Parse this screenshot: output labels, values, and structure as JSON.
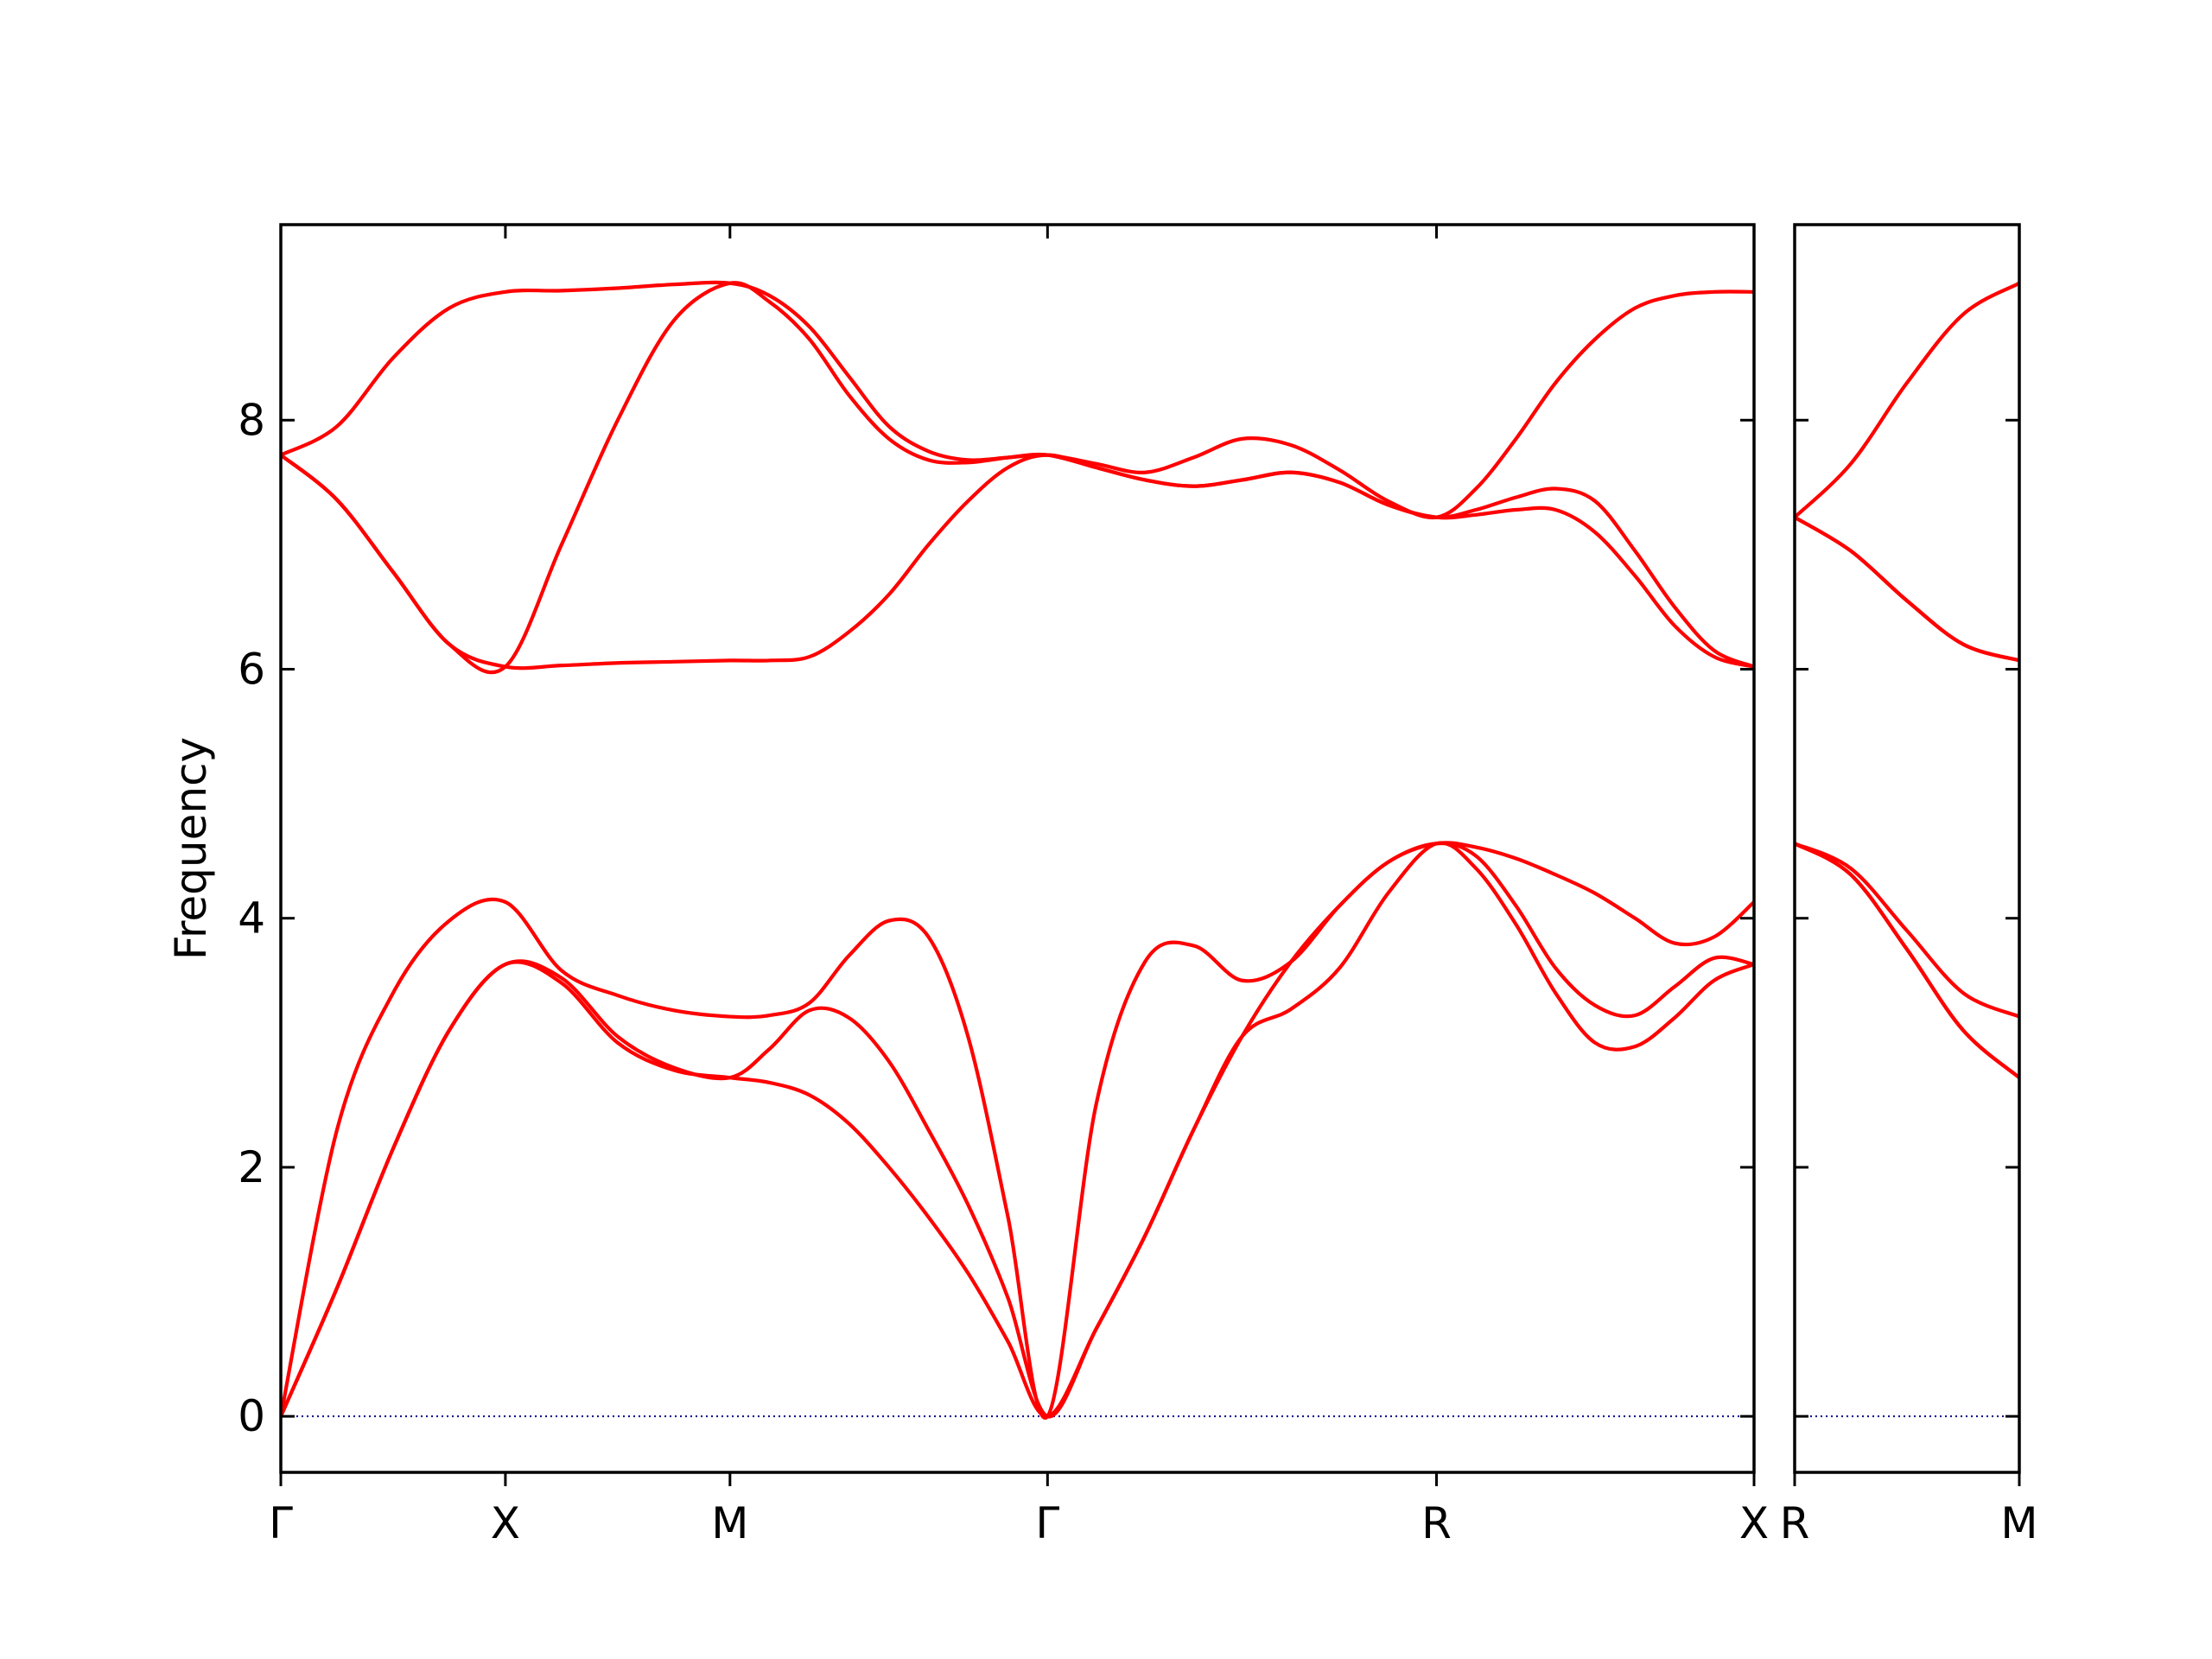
{
  "chart_data": [
    {
      "type": "line",
      "y_label": "Frequency",
      "x": [
        0,
        0.125,
        0.25,
        0.375,
        0.5,
        0.625,
        0.75,
        0.875,
        1.0,
        1.088,
        1.177,
        1.265,
        1.354,
        1.442,
        1.53,
        1.619,
        1.707,
        1.815,
        1.924,
        2.032,
        2.14,
        2.249,
        2.357,
        2.465,
        2.573,
        2.661,
        2.75,
        2.838,
        2.926,
        3.015,
        3.103,
        3.191,
        3.28
      ],
      "xlim": [
        0,
        3.28
      ],
      "xticks": [
        {
          "value": 0,
          "label": "Γ"
        },
        {
          "value": 0.5,
          "label": "X"
        },
        {
          "value": 1.0,
          "label": "M"
        },
        {
          "value": 1.707,
          "label": "Γ"
        },
        {
          "value": 2.573,
          "label": "R"
        },
        {
          "value": 3.28,
          "label": "X"
        }
      ],
      "ylim": [
        -0.45,
        9.57
      ],
      "yticks": [
        0,
        2,
        4,
        6,
        8
      ],
      "ytick_labels": true,
      "hline": 0,
      "hline_color": "#00008b",
      "series": [
        {
          "color": "#ff0000",
          "values": [
            0,
            1.03,
            2.15,
            3.1,
            3.63,
            3.48,
            3.0,
            2.78,
            2.72,
            2.68,
            2.58,
            2.35,
            2.0,
            1.6,
            1.15,
            0.6,
            0,
            0.7,
            1.45,
            2.3,
            3.05,
            3.27,
            3.6,
            4.2,
            4.6,
            4.4,
            3.95,
            3.4,
            3.0,
            2.97,
            3.2,
            3.5,
            3.63
          ]
        },
        {
          "color": "#ff0000",
          "values": [
            0,
            1.03,
            2.15,
            3.1,
            3.63,
            3.52,
            3.05,
            2.8,
            2.72,
            2.95,
            3.26,
            3.2,
            2.85,
            2.3,
            1.7,
            0.95,
            0,
            0.7,
            1.45,
            2.3,
            3.05,
            3.65,
            4.1,
            4.45,
            4.6,
            4.5,
            4.1,
            3.6,
            3.3,
            3.22,
            3.45,
            3.68,
            3.63
          ]
        },
        {
          "color": "#ff0000",
          "values": [
            0,
            2.3,
            3.4,
            3.98,
            4.13,
            3.58,
            3.38,
            3.26,
            3.21,
            3.22,
            3.32,
            3.7,
            3.98,
            3.85,
            3.05,
            1.6,
            0,
            2.5,
            3.65,
            3.78,
            3.5,
            3.65,
            4.1,
            4.45,
            4.6,
            4.57,
            4.48,
            4.35,
            4.2,
            4.0,
            3.8,
            3.85,
            4.13
          ]
        },
        {
          "color": "#ff0000",
          "values": [
            7.72,
            7.36,
            6.78,
            6.2,
            6.02,
            6.03,
            6.05,
            6.06,
            6.07,
            6.07,
            6.1,
            6.3,
            6.6,
            7.0,
            7.35,
            7.62,
            7.72,
            7.62,
            7.52,
            7.47,
            7.52,
            7.58,
            7.5,
            7.32,
            7.22,
            7.24,
            7.28,
            7.28,
            7.1,
            6.75,
            6.35,
            6.1,
            6.02
          ]
        },
        {
          "color": "#ff0000",
          "values": [
            7.72,
            7.36,
            6.78,
            6.2,
            6.02,
            7.0,
            8.0,
            8.8,
            9.1,
            8.95,
            8.65,
            8.2,
            7.85,
            7.68,
            7.66,
            7.7,
            7.72,
            7.62,
            7.52,
            7.47,
            7.52,
            7.58,
            7.5,
            7.32,
            7.22,
            7.28,
            7.38,
            7.45,
            7.35,
            6.95,
            6.5,
            6.15,
            6.02
          ]
        },
        {
          "color": "#ff0000",
          "values": [
            7.72,
            7.95,
            8.5,
            8.9,
            9.03,
            9.04,
            9.06,
            9.09,
            9.1,
            9.0,
            8.75,
            8.35,
            7.95,
            7.75,
            7.68,
            7.7,
            7.72,
            7.65,
            7.58,
            7.7,
            7.85,
            7.8,
            7.6,
            7.35,
            7.22,
            7.45,
            7.85,
            8.3,
            8.65,
            8.9,
            9.0,
            9.03,
            9.03
          ]
        }
      ]
    },
    {
      "type": "line",
      "x": [
        0,
        0.125,
        0.25,
        0.375,
        0.5
      ],
      "xlim": [
        0,
        0.5
      ],
      "xticks": [
        {
          "value": 0,
          "label": "R"
        },
        {
          "value": 0.5,
          "label": "M"
        }
      ],
      "ylim": [
        -0.45,
        9.57
      ],
      "yticks": [
        0,
        2,
        4,
        6,
        8
      ],
      "ytick_labels": false,
      "hline": 0,
      "hline_color": "#00008b",
      "series": [
        {
          "color": "#ff0000",
          "values": [
            4.6,
            4.35,
            3.75,
            3.1,
            2.72
          ]
        },
        {
          "color": "#ff0000",
          "values": [
            4.6,
            4.35,
            3.75,
            3.1,
            2.72
          ]
        },
        {
          "color": "#ff0000",
          "values": [
            4.6,
            4.4,
            3.9,
            3.4,
            3.21
          ]
        },
        {
          "color": "#ff0000",
          "values": [
            7.22,
            6.95,
            6.55,
            6.2,
            6.07
          ]
        },
        {
          "color": "#ff0000",
          "values": [
            7.22,
            6.95,
            6.55,
            6.2,
            6.07
          ]
        },
        {
          "color": "#ff0000",
          "values": [
            7.22,
            7.65,
            8.3,
            8.85,
            9.1
          ]
        }
      ]
    }
  ]
}
